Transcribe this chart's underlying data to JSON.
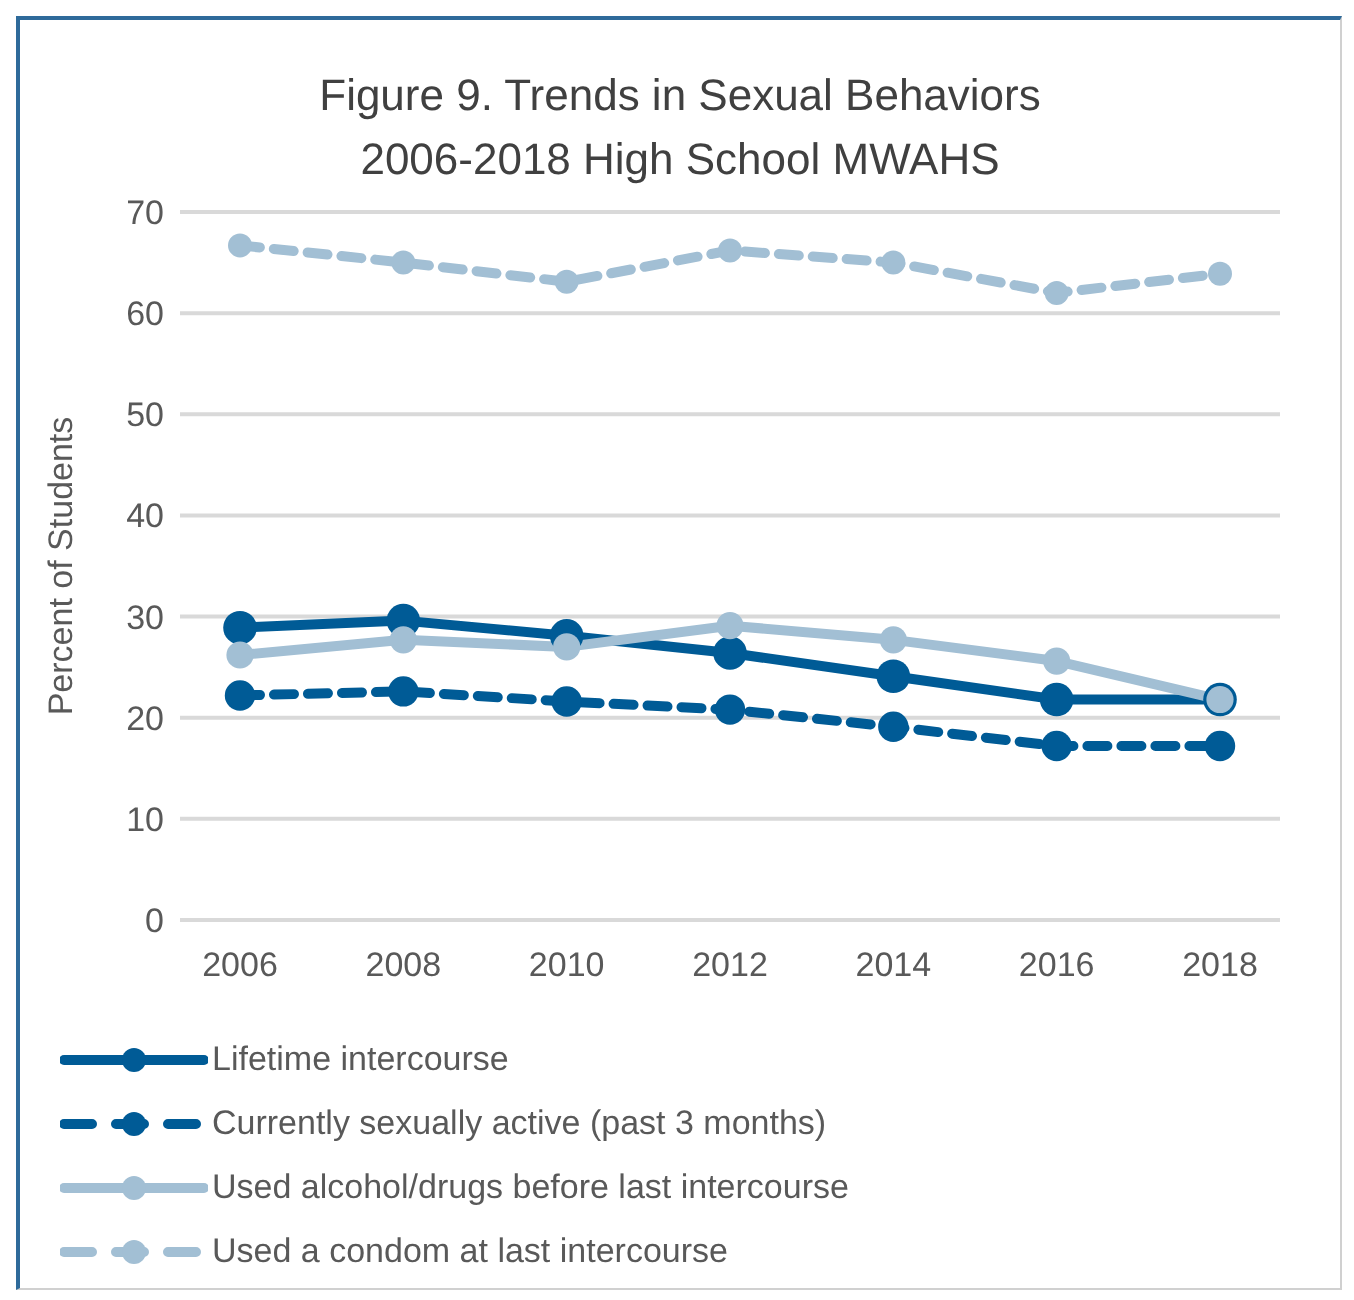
{
  "chart_data": {
    "type": "line",
    "title": "Figure 9. Trends in Sexual Behaviors\n2006-2018 High School MWAHS",
    "ylabel": "Percent of Students",
    "categories": [
      "2006",
      "2008",
      "2010",
      "2012",
      "2014",
      "2016",
      "2018"
    ],
    "series": [
      {
        "name": "Lifetime intercourse",
        "color": "#005b96",
        "line_style": "solid",
        "values": [
          28.9,
          29.6,
          28.1,
          26.4,
          24.1,
          21.8,
          21.8
        ]
      },
      {
        "name": "Currently sexually active (past 3 months)",
        "color": "#005b96",
        "line_style": "dashed",
        "values": [
          22.2,
          22.6,
          21.6,
          20.8,
          19.1,
          17.2,
          17.2
        ]
      },
      {
        "name": "Used alcohol/drugs before last intercourse",
        "color": "#a2bfd4",
        "line_style": "solid",
        "values": [
          26.2,
          27.7,
          27.0,
          29.1,
          27.7,
          25.6,
          21.8
        ]
      },
      {
        "name": "Used a condom at last intercourse",
        "color": "#a2bfd4",
        "line_style": "dashed",
        "values": [
          66.7,
          65.0,
          63.1,
          66.2,
          65.0,
          62.0,
          63.9
        ]
      }
    ],
    "ylim": [
      0,
      70
    ],
    "yticks": [
      0,
      10,
      20,
      30,
      40,
      50,
      60,
      70
    ],
    "grid": "y",
    "legend": "bottom",
    "marker": "circle"
  }
}
